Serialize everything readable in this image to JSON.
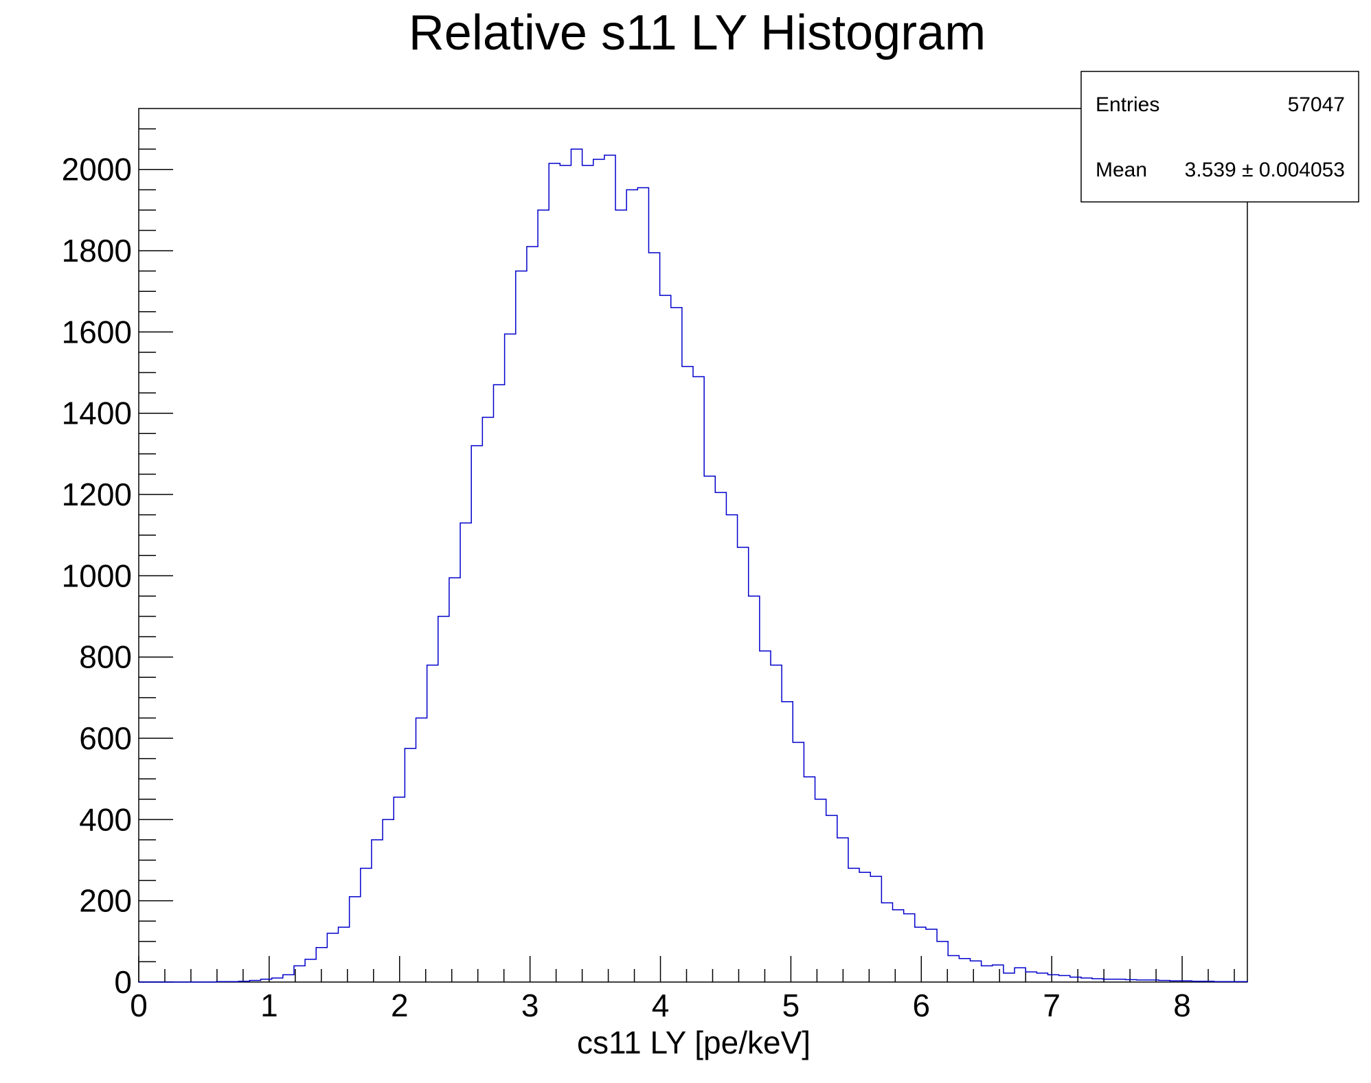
{
  "chart_data": {
    "type": "bar",
    "title": "Relative s11 LY Histogram",
    "xlabel": "cs11 LY [pe/keV]",
    "ylabel": "",
    "xlim": [
      0,
      8.5
    ],
    "ylim": [
      0,
      2150
    ],
    "x_ticks": [
      "0",
      "1",
      "2",
      "3",
      "4",
      "5",
      "6",
      "7",
      "8"
    ],
    "y_ticks": [
      "0",
      "200",
      "400",
      "600",
      "800",
      "1000",
      "1200",
      "1400",
      "1600",
      "1800",
      "2000"
    ],
    "bin_width": 0.085,
    "bin_start": 0,
    "line_color": "#0000cc",
    "grid": false,
    "legend": "none",
    "values": [
      0,
      0,
      0,
      0,
      0,
      0,
      0,
      1,
      1,
      2,
      4,
      7,
      10,
      18,
      40,
      56,
      85,
      120,
      135,
      210,
      280,
      350,
      400,
      455,
      575,
      650,
      780,
      900,
      995,
      1130,
      1320,
      1390,
      1470,
      1595,
      1750,
      1810,
      1900,
      2015,
      2010,
      2050,
      2010,
      2025,
      2035,
      1900,
      1950,
      1955,
      1795,
      1690,
      1660,
      1515,
      1490,
      1245,
      1205,
      1150,
      1070,
      950,
      815,
      780,
      690,
      590,
      505,
      450,
      410,
      355,
      280,
      270,
      260,
      195,
      178,
      168,
      135,
      130,
      100,
      65,
      58,
      52,
      40,
      42,
      22,
      35,
      25,
      22,
      18,
      16,
      12,
      10,
      8,
      7,
      7,
      6,
      5,
      5,
      4,
      3,
      3,
      2,
      2,
      1,
      1,
      1
    ],
    "stats_box": {
      "entries_label": "Entries",
      "entries_value": "57047",
      "mean_label": "Mean",
      "mean_value": "3.539 ± 0.004053"
    }
  }
}
